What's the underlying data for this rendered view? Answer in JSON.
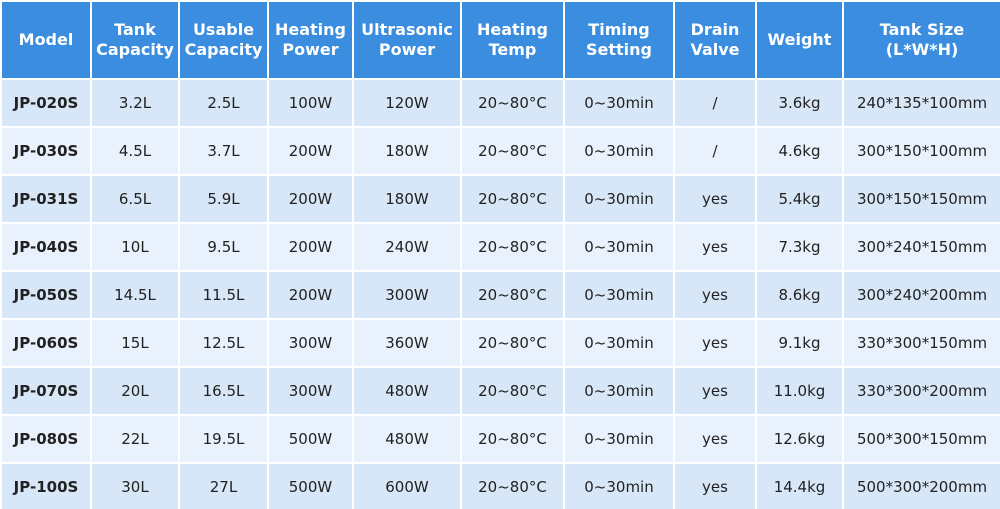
{
  "table": {
    "header": [
      "Model",
      "Tank\nCapacity",
      "Usable\nCapacity",
      "Heating\nPower",
      "Ultrasonic\nPower",
      "Heating\nTemp",
      "Timing\nSetting",
      "Drain\nValve",
      "Weight",
      "Tank Size\n(L*W*H)"
    ],
    "rows": [
      [
        "JP-020S",
        "3.2L",
        "2.5L",
        "100W",
        "120W",
        "20~80°C",
        "0~30min",
        "/",
        "3.6kg",
        "240*135*100mm"
      ],
      [
        "JP-030S",
        "4.5L",
        "3.7L",
        "200W",
        "180W",
        "20~80°C",
        "0~30min",
        "/",
        "4.6kg",
        "300*150*100mm"
      ],
      [
        "JP-031S",
        "6.5L",
        "5.9L",
        "200W",
        "180W",
        "20~80°C",
        "0~30min",
        "yes",
        "5.4kg",
        "300*150*150mm"
      ],
      [
        "JP-040S",
        "10L",
        "9.5L",
        "200W",
        "240W",
        "20~80°C",
        "0~30min",
        "yes",
        "7.3kg",
        "300*240*150mm"
      ],
      [
        "JP-050S",
        "14.5L",
        "11.5L",
        "200W",
        "300W",
        "20~80°C",
        "0~30min",
        "yes",
        "8.6kg",
        "300*240*200mm"
      ],
      [
        "JP-060S",
        "15L",
        "12.5L",
        "300W",
        "360W",
        "20~80°C",
        "0~30min",
        "yes",
        "9.1kg",
        "330*300*150mm"
      ],
      [
        "JP-070S",
        "20L",
        "16.5L",
        "300W",
        "480W",
        "20~80°C",
        "0~30min",
        "yes",
        "11.0kg",
        "330*300*200mm"
      ],
      [
        "JP-080S",
        "22L",
        "19.5L",
        "500W",
        "480W",
        "20~80°C",
        "0~30min",
        "yes",
        "12.6kg",
        "500*300*150mm"
      ],
      [
        "JP-100S",
        "30L",
        "27L",
        "500W",
        "600W",
        "20~80°C",
        "0~30min",
        "yes",
        "14.4kg",
        "500*300*200mm"
      ]
    ]
  }
}
